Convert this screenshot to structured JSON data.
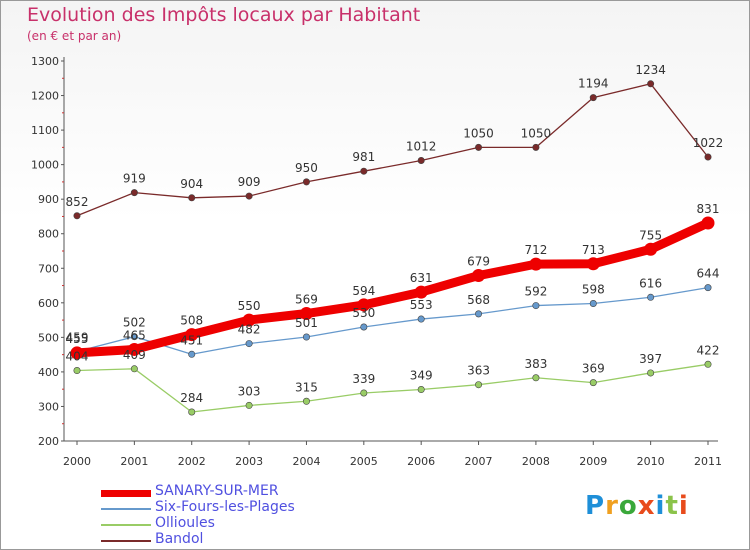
{
  "title": "Evolution des Impôts locaux par Habitant",
  "subtitle": "(en € et par an)",
  "logo_text": "Proxiti",
  "logo_colors": [
    "#1e8fd8",
    "#f0a020",
    "#3aa83a",
    "#e84b1c",
    "#1e8fd8",
    "#8bc34a",
    "#e84b1c"
  ],
  "chart_data": {
    "type": "line",
    "x": [
      "2000",
      "2001",
      "2002",
      "2003",
      "2004",
      "2005",
      "2006",
      "2007",
      "2008",
      "2009",
      "2010",
      "2011"
    ],
    "ylim": [
      200,
      1300
    ],
    "yticks": [
      "200",
      "300",
      "400",
      "500",
      "600",
      "700",
      "800",
      "900",
      "1000",
      "1100",
      "1200",
      "1300"
    ],
    "grid": false,
    "legend_position": "bottom-left",
    "series": [
      {
        "name": "SANARY-SUR-MER",
        "color": "#ee0000",
        "values": [
          455,
          465,
          508,
          550,
          569,
          594,
          631,
          679,
          712,
          713,
          755,
          831
        ],
        "labels": [
          "455",
          "465",
          "508",
          "550",
          "569",
          "594",
          "631",
          "679",
          "712",
          "713",
          "755",
          "831"
        ]
      },
      {
        "name": "Six-Fours-les-Plages",
        "color": "#6699cc",
        "values": [
          459,
          502,
          451,
          482,
          501,
          530,
          553,
          568,
          592,
          598,
          616,
          644
        ],
        "labels": [
          "459",
          "502",
          "451",
          "482",
          "501",
          "530",
          "553",
          "568",
          "592",
          "598",
          "616",
          "644"
        ]
      },
      {
        "name": "Ollioules",
        "color": "#99cc66",
        "values": [
          404,
          409,
          284,
          303,
          315,
          339,
          349,
          363,
          383,
          369,
          397,
          422
        ],
        "labels": [
          "404",
          "409",
          "284",
          "303",
          "315",
          "339",
          "349",
          "363",
          "383",
          "369",
          "397",
          "422"
        ]
      },
      {
        "name": "Bandol",
        "color": "#7a2a2a",
        "values": [
          852,
          919,
          904,
          909,
          950,
          981,
          1012,
          1050,
          1050,
          1194,
          1234,
          1022
        ],
        "labels": [
          "852",
          "919",
          "904",
          "909",
          "950",
          "981",
          "1012",
          "1050",
          "1050",
          "1194",
          "1234",
          "1022"
        ]
      }
    ]
  }
}
